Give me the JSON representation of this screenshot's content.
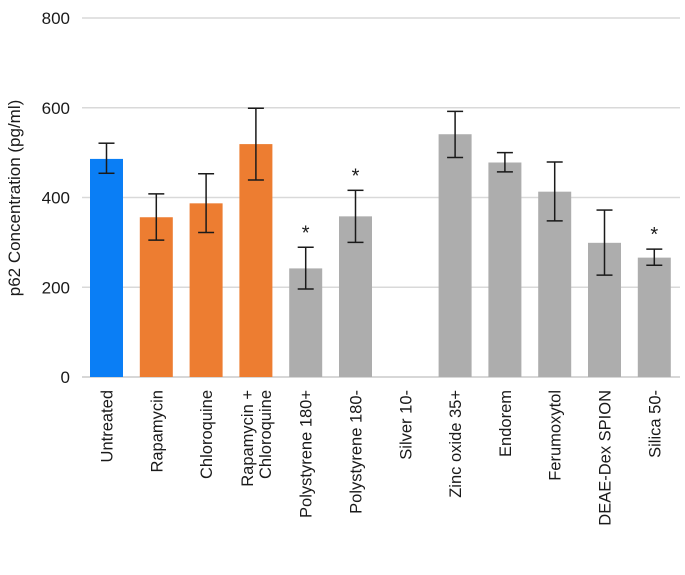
{
  "chart_data": {
    "type": "bar",
    "title": "",
    "xlabel": "",
    "ylabel": "p62 Concentration (pg/ml)",
    "ylim": [
      0,
      800
    ],
    "yticks": [
      0,
      200,
      400,
      600,
      800
    ],
    "ytick_labels": [
      "0",
      "200",
      "400",
      "600",
      "800"
    ],
    "grid": true,
    "legend": "none",
    "colors": {
      "control": "#0A7EF5",
      "autophagy_modulator": "#ED7D31",
      "nanoparticle": "#ADADAD",
      "error_bar": "#1a1a1a",
      "grid": "#d9d9d9"
    },
    "categories": [
      [
        "Untreated"
      ],
      [
        "Rapamycin"
      ],
      [
        "Chloroquine"
      ],
      [
        "Rapamycin +",
        "Chloroquine"
      ],
      [
        "Polystyrene 180+"
      ],
      [
        "Polystyrene 180-"
      ],
      [
        "Silver 10-"
      ],
      [
        "Zinc oxide 35+"
      ],
      [
        "Endorem"
      ],
      [
        "Ferumoxytol"
      ],
      [
        "DEAE-Dex SPION"
      ],
      [
        "Silica 50-"
      ]
    ],
    "values": [
      486,
      356,
      387,
      519,
      242,
      358,
      null,
      541,
      478,
      413,
      299,
      266
    ],
    "error_low": [
      454,
      305,
      322,
      439,
      196,
      300,
      null,
      489,
      457,
      348,
      227,
      249
    ],
    "error_high": [
      521,
      408,
      453,
      599,
      289,
      416,
      null,
      592,
      500,
      479,
      372,
      285
    ],
    "groups": [
      "control",
      "autophagy_modulator",
      "autophagy_modulator",
      "autophagy_modulator",
      "nanoparticle",
      "nanoparticle",
      "nanoparticle",
      "nanoparticle",
      "nanoparticle",
      "nanoparticle",
      "nanoparticle",
      "nanoparticle"
    ],
    "significance": [
      "",
      "",
      "",
      "",
      "*",
      "*",
      "",
      "",
      "",
      "",
      "",
      "*"
    ]
  }
}
